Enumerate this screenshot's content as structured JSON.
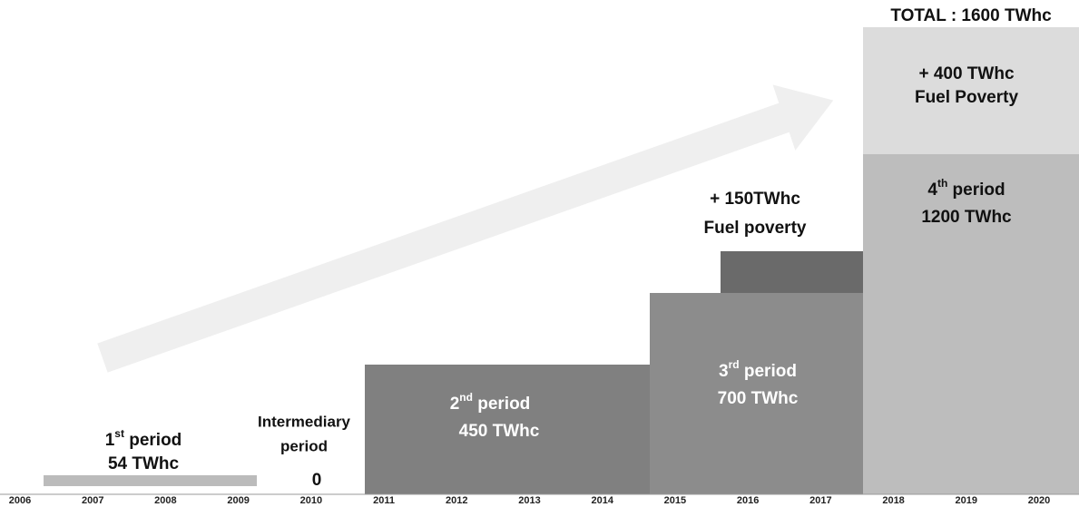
{
  "title": "TOTAL : 1600 TWhc",
  "years": [
    "2006",
    "2007",
    "2008",
    "2009",
    "2010",
    "2011",
    "2012",
    "2013",
    "2014",
    "2015",
    "2016",
    "2017",
    "2018",
    "2019",
    "2020"
  ],
  "periods": [
    {
      "num": "1",
      "sup": "st",
      "rest": " period",
      "amount": "54 TWhc"
    },
    {
      "num": "2",
      "sup": "nd",
      "rest": " period",
      "amount": "450 TWhc"
    },
    {
      "num": "3",
      "sup": "rd",
      "rest": " period",
      "amount": "700 TWhc"
    },
    {
      "num": "4",
      "sup": "th",
      "rest": " period",
      "amount": "1200 TWhc"
    }
  ],
  "intermediary": {
    "label": [
      "Intermediary",
      "period"
    ],
    "amount": "0"
  },
  "fuel_poverty_3": [
    "+ 150TWhc",
    "Fuel poverty"
  ],
  "fuel_poverty_4": [
    "+ 400 TWhc",
    "Fuel Poverty"
  ]
}
